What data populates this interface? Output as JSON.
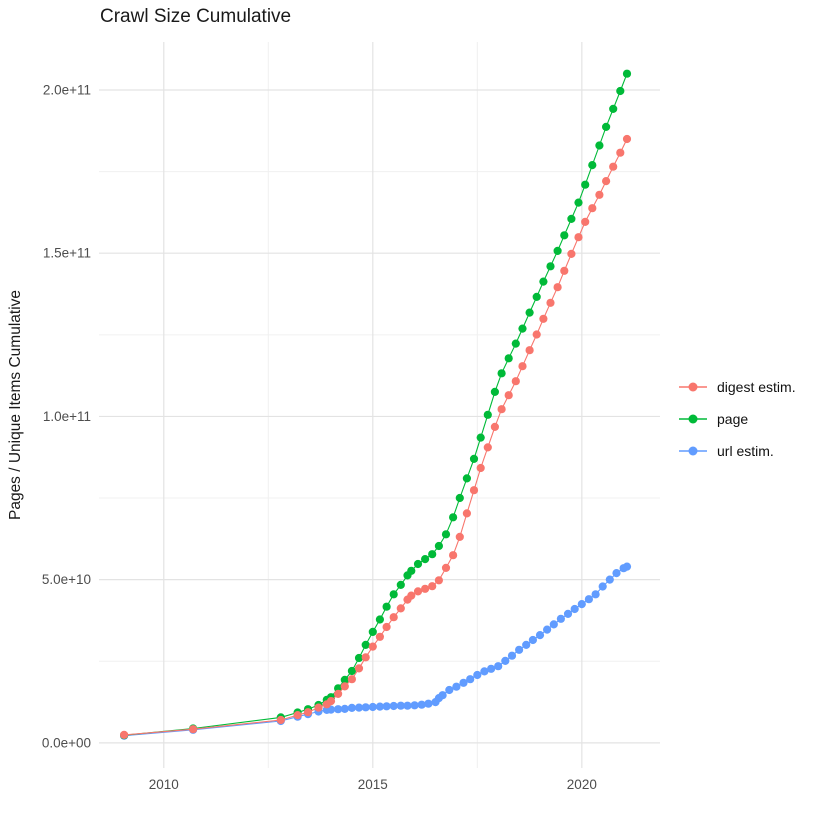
{
  "title": "Crawl Size Cumulative",
  "legend": {
    "items": [
      {
        "label": "digest estim.",
        "color": "#F8766D"
      },
      {
        "label": "page",
        "color": "#00BA38"
      },
      {
        "label": "url estim.",
        "color": "#619CFF"
      }
    ]
  },
  "colors": {
    "background": "#FFFFFF",
    "grid_major": "#E3E3E3",
    "grid_minor": "#F0F0F0",
    "axis_text": "#4D4D4D",
    "title_text": "#1A1A1A",
    "digest": "#F8766D",
    "page": "#00BA38",
    "url": "#619CFF"
  },
  "chart_data": {
    "type": "line",
    "title": "Crawl Size Cumulative",
    "xlabel": "",
    "ylabel": "Pages / Unique Items Cumulative",
    "note": "scatter+line, ggplot style; y values stored in billions (1e9 items)",
    "xlim": [
      2008.45,
      2021.87
    ],
    "ylim_e9": [
      -7.7,
      214.7
    ],
    "x_major_ticks": [
      2010,
      2015,
      2020
    ],
    "x_tick_labels": [
      "2010",
      "2015",
      "2020"
    ],
    "x_minor_ticks": [
      2012.5,
      2017.5
    ],
    "y_major_ticks_e9": [
      0,
      50,
      100,
      150,
      200
    ],
    "y_tick_labels": [
      "0.0e+00",
      "5.0e+10",
      "1.0e+11",
      "1.5e+11",
      "2.0e+11"
    ],
    "y_minor_ticks_e9": [
      25,
      75,
      125,
      175
    ],
    "grid": true,
    "legend_position": "right",
    "marker_radius": 4.1,
    "series": [
      {
        "name": "digest estim.",
        "color": "#F8766D",
        "points": [
          [
            2009.05,
            2.45
          ],
          [
            2010.7,
            4.2
          ],
          [
            2012.8,
            7.0
          ],
          [
            2013.2,
            8.5
          ],
          [
            2013.45,
            9.4
          ],
          [
            2013.7,
            10.8
          ],
          [
            2013.9,
            11.8
          ],
          [
            2014.0,
            12.8
          ],
          [
            2014.17,
            15.0
          ],
          [
            2014.33,
            17.3
          ],
          [
            2014.5,
            19.5
          ],
          [
            2014.67,
            22.8
          ],
          [
            2014.83,
            26.2
          ],
          [
            2015.0,
            29.5
          ],
          [
            2015.17,
            32.5
          ],
          [
            2015.33,
            35.5
          ],
          [
            2015.5,
            38.5
          ],
          [
            2015.67,
            41.2
          ],
          [
            2015.83,
            43.9
          ],
          [
            2015.92,
            45.1
          ],
          [
            2016.08,
            46.4
          ],
          [
            2016.25,
            47.2
          ],
          [
            2016.42,
            48.0
          ],
          [
            2016.58,
            49.8
          ],
          [
            2016.75,
            53.6
          ],
          [
            2016.92,
            57.5
          ],
          [
            2017.08,
            63.1
          ],
          [
            2017.25,
            70.3
          ],
          [
            2017.42,
            77.4
          ],
          [
            2017.58,
            84.2
          ],
          [
            2017.75,
            90.5
          ],
          [
            2017.92,
            96.8
          ],
          [
            2018.08,
            102.2
          ],
          [
            2018.25,
            106.5
          ],
          [
            2018.42,
            110.8
          ],
          [
            2018.58,
            115.4
          ],
          [
            2018.75,
            120.3
          ],
          [
            2018.92,
            125.1
          ],
          [
            2019.08,
            129.9
          ],
          [
            2019.25,
            134.8
          ],
          [
            2019.42,
            139.6
          ],
          [
            2019.58,
            144.6
          ],
          [
            2019.75,
            149.8
          ],
          [
            2019.92,
            154.9
          ],
          [
            2020.08,
            159.6
          ],
          [
            2020.25,
            163.8
          ],
          [
            2020.42,
            167.9
          ],
          [
            2020.58,
            172.1
          ],
          [
            2020.75,
            176.5
          ],
          [
            2020.92,
            180.8
          ],
          [
            2021.08,
            185.0
          ]
        ]
      },
      {
        "name": "page",
        "color": "#00BA38",
        "points": [
          [
            2009.05,
            2.35
          ],
          [
            2010.7,
            4.4
          ],
          [
            2012.8,
            7.8
          ],
          [
            2013.2,
            9.3
          ],
          [
            2013.45,
            10.3
          ],
          [
            2013.7,
            11.6
          ],
          [
            2013.9,
            13.2
          ],
          [
            2014.0,
            14.0
          ],
          [
            2014.17,
            16.7
          ],
          [
            2014.33,
            19.3
          ],
          [
            2014.5,
            22.0
          ],
          [
            2014.67,
            26.0
          ],
          [
            2014.83,
            30.0
          ],
          [
            2015.0,
            34.0
          ],
          [
            2015.17,
            37.8
          ],
          [
            2015.33,
            41.7
          ],
          [
            2015.5,
            45.5
          ],
          [
            2015.67,
            48.4
          ],
          [
            2015.83,
            51.3
          ],
          [
            2015.92,
            52.7
          ],
          [
            2016.08,
            54.8
          ],
          [
            2016.25,
            56.3
          ],
          [
            2016.42,
            57.8
          ],
          [
            2016.58,
            60.3
          ],
          [
            2016.75,
            63.9
          ],
          [
            2016.92,
            69.1
          ],
          [
            2017.08,
            75.0
          ],
          [
            2017.25,
            81.0
          ],
          [
            2017.42,
            87.0
          ],
          [
            2017.58,
            93.5
          ],
          [
            2017.75,
            100.5
          ],
          [
            2017.92,
            107.5
          ],
          [
            2018.08,
            113.2
          ],
          [
            2018.25,
            117.8
          ],
          [
            2018.42,
            122.3
          ],
          [
            2018.58,
            126.9
          ],
          [
            2018.75,
            131.8
          ],
          [
            2018.92,
            136.6
          ],
          [
            2019.08,
            141.3
          ],
          [
            2019.25,
            146.0
          ],
          [
            2019.42,
            150.7
          ],
          [
            2019.58,
            155.5
          ],
          [
            2019.75,
            160.5
          ],
          [
            2019.92,
            165.5
          ],
          [
            2020.08,
            171.0
          ],
          [
            2020.25,
            177.0
          ],
          [
            2020.42,
            183.0
          ],
          [
            2020.58,
            188.7
          ],
          [
            2020.75,
            194.2
          ],
          [
            2020.92,
            199.7
          ],
          [
            2021.08,
            205.0
          ]
        ]
      },
      {
        "name": "url estim.",
        "color": "#619CFF",
        "points": [
          [
            2009.05,
            2.2
          ],
          [
            2010.7,
            4.0
          ],
          [
            2012.8,
            6.7
          ],
          [
            2013.2,
            8.0
          ],
          [
            2013.45,
            8.8
          ],
          [
            2013.7,
            9.6
          ],
          [
            2013.9,
            10.1
          ],
          [
            2014.0,
            10.2
          ],
          [
            2014.17,
            10.3
          ],
          [
            2014.33,
            10.4
          ],
          [
            2014.5,
            10.7
          ],
          [
            2014.67,
            10.8
          ],
          [
            2014.83,
            10.9
          ],
          [
            2015.0,
            11.0
          ],
          [
            2015.17,
            11.1
          ],
          [
            2015.33,
            11.2
          ],
          [
            2015.5,
            11.3
          ],
          [
            2015.67,
            11.4
          ],
          [
            2015.83,
            11.4
          ],
          [
            2016.0,
            11.5
          ],
          [
            2016.17,
            11.7
          ],
          [
            2016.33,
            12.0
          ],
          [
            2016.5,
            12.5
          ],
          [
            2016.58,
            13.7
          ],
          [
            2016.67,
            14.6
          ],
          [
            2016.83,
            16.2
          ],
          [
            2017.0,
            17.2
          ],
          [
            2017.17,
            18.4
          ],
          [
            2017.33,
            19.5
          ],
          [
            2017.5,
            20.8
          ],
          [
            2017.67,
            21.9
          ],
          [
            2017.83,
            22.7
          ],
          [
            2018.0,
            23.5
          ],
          [
            2018.17,
            25.1
          ],
          [
            2018.33,
            26.7
          ],
          [
            2018.5,
            28.5
          ],
          [
            2018.67,
            30.0
          ],
          [
            2018.83,
            31.5
          ],
          [
            2019.0,
            33.0
          ],
          [
            2019.17,
            34.7
          ],
          [
            2019.33,
            36.3
          ],
          [
            2019.5,
            38.0
          ],
          [
            2019.67,
            39.5
          ],
          [
            2019.83,
            41.0
          ],
          [
            2020.0,
            42.5
          ],
          [
            2020.17,
            44.0
          ],
          [
            2020.33,
            45.5
          ],
          [
            2020.5,
            47.9
          ],
          [
            2020.67,
            50.0
          ],
          [
            2020.83,
            52.0
          ],
          [
            2021.0,
            53.5
          ],
          [
            2021.08,
            54.0
          ]
        ]
      }
    ]
  }
}
